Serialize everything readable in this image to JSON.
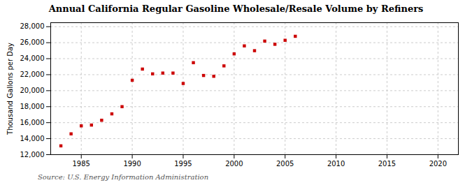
{
  "chart_data": {
    "type": "scatter",
    "title": "Annual California Regular Gasoline Wholesale/Resale Volume by Refiners",
    "ylabel": "Thousand Gallons per Day",
    "source": "Source: U.S. Energy Information Administration",
    "x": [
      1983,
      1984,
      1985,
      1986,
      1987,
      1988,
      1989,
      1990,
      1991,
      1992,
      1993,
      1994,
      1995,
      1996,
      1997,
      1998,
      1999,
      2000,
      2001,
      2002,
      2003,
      2004,
      2005,
      2006
    ],
    "values": [
      13100,
      14600,
      15600,
      15700,
      16300,
      17100,
      18000,
      21300,
      22700,
      22100,
      22200,
      22200,
      20900,
      23500,
      21900,
      21800,
      23100,
      24600,
      25600,
      25000,
      26200,
      25800,
      26300,
      26800
    ],
    "color": "#cc0000",
    "marker": "square",
    "xlim": [
      1982,
      2022
    ],
    "xticks": [
      1985,
      1990,
      1995,
      2000,
      2005,
      2010,
      2015,
      2020
    ],
    "ylim": [
      12000,
      28500
    ],
    "yticks": [
      {
        "value": 12000,
        "label": "12,000"
      },
      {
        "value": 14000,
        "label": "14,000"
      },
      {
        "value": 16000,
        "label": "16,000"
      },
      {
        "value": 18000,
        "label": "18,000"
      },
      {
        "value": 20000,
        "label": "20,000"
      },
      {
        "value": 22000,
        "label": "22,000"
      },
      {
        "value": 24000,
        "label": "24,000"
      },
      {
        "value": 26000,
        "label": "26,000"
      },
      {
        "value": 28000,
        "label": "28,000"
      }
    ],
    "grid": true
  }
}
